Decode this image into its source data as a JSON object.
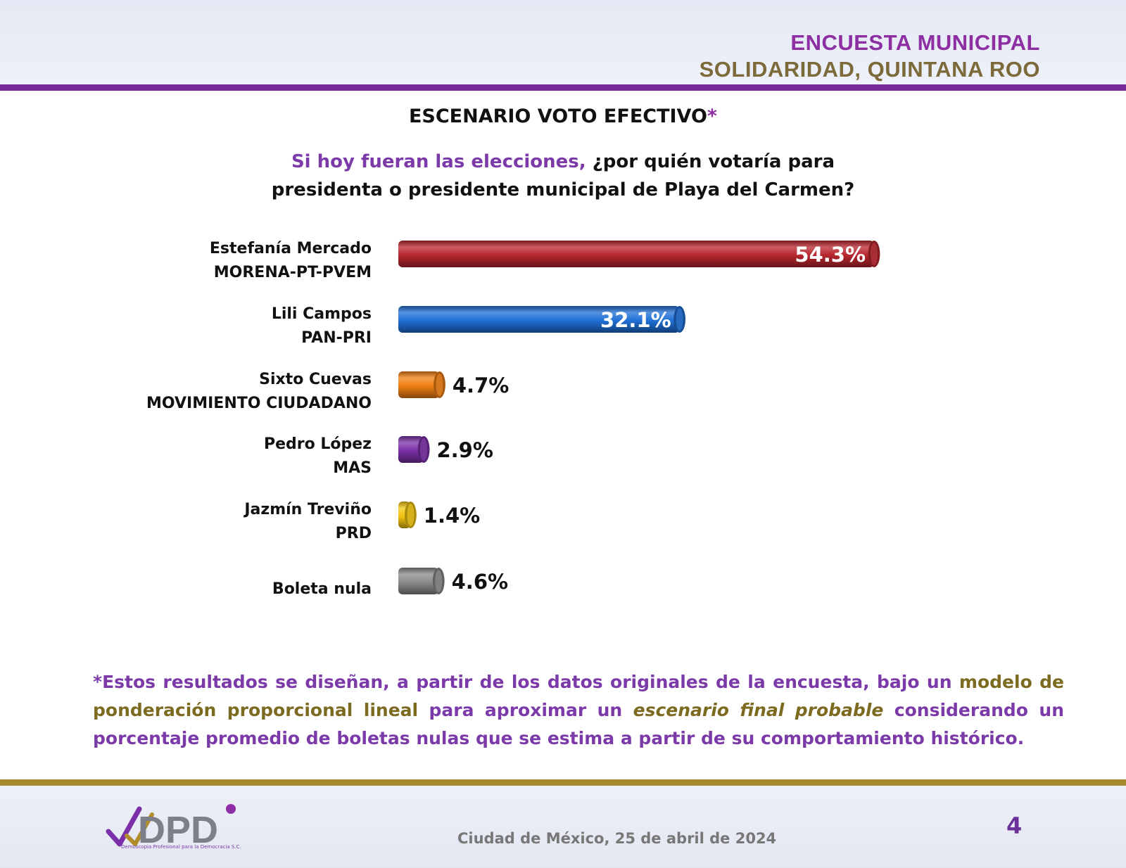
{
  "header": {
    "title_line1": "ENCUESTA MUNICIPAL",
    "title_line2": "SOLIDARIDAD, QUINTANA ROO"
  },
  "chart_title": {
    "text": "ESCENARIO VOTO EFECTIVO",
    "star": "*"
  },
  "question": {
    "purple_part": "Si hoy fueran las elecciones,",
    "line1_rest": " ¿por quién votaría para",
    "line2": "presidenta o presidente municipal de Playa del Carmen?"
  },
  "chart_data": {
    "type": "bar",
    "orientation": "horizontal",
    "categories": [
      [
        "Estefanía Mercado",
        "MORENA-PT-PVEM"
      ],
      [
        "Lili Campos",
        "PAN-PRI"
      ],
      [
        "Sixto Cuevas",
        "MOVIMIENTO CIUDADANO"
      ],
      [
        "Pedro López",
        "MAS"
      ],
      [
        "Jazmín Treviño",
        "PRD"
      ],
      [
        "Boleta nula"
      ]
    ],
    "values": [
      54.3,
      32.1,
      4.7,
      2.9,
      1.4,
      4.6
    ],
    "value_labels": [
      "54.3%",
      "32.1%",
      "4.7%",
      "2.9%",
      "1.4%",
      "4.6%"
    ],
    "colors": [
      "#b8262e",
      "#1f6fd6",
      "#f07f12",
      "#7b2fa8",
      "#f2c511",
      "#8a8a8a"
    ],
    "label_inside": [
      true,
      true,
      false,
      false,
      false,
      false
    ]
  },
  "footnote": {
    "p1": "*Estos resultados se diseñan, a partir de los datos originales de la encuesta, bajo un ",
    "g1": "modelo de ponderación proporcional lineal",
    "p2": " para aproximar un ",
    "em": "escenario final probable",
    "p3": " considerando un porcentaje promedio de boletas nulas que se estima a partir de su comportamiento histórico."
  },
  "footer": {
    "date": "Ciudad de México, 25 de abril de 2024",
    "page": "4",
    "logo_text": "DPD",
    "logo_sub": "Demoscopia Profesional para la Democracia S.C."
  }
}
